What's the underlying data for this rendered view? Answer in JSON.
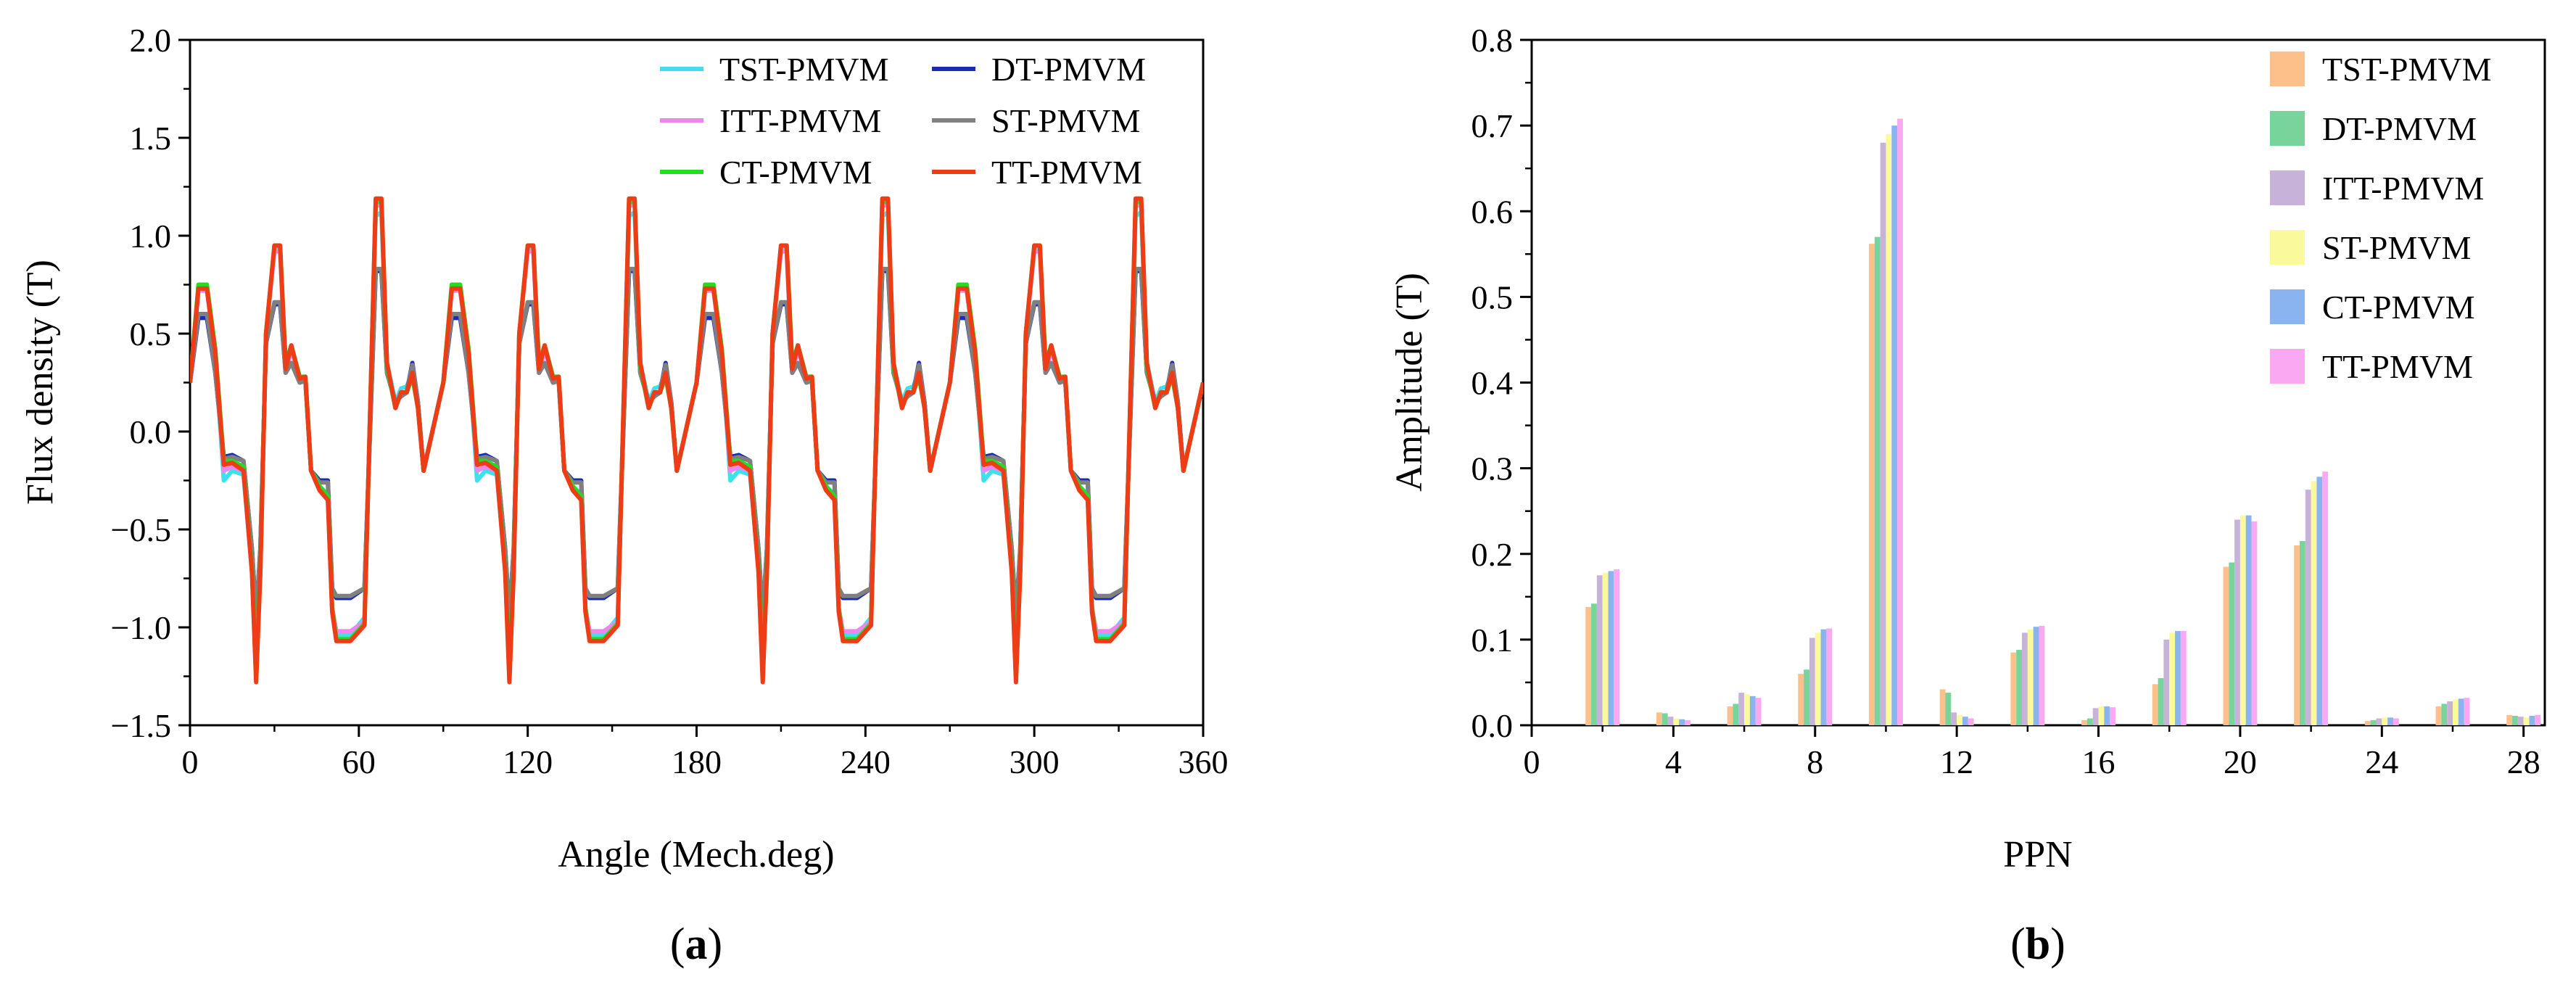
{
  "chart_data": [
    {
      "panel": "a",
      "caption_letter": "a",
      "type": "line",
      "xlabel": "Angle (Mech.deg)",
      "ylabel": "Flux density (T)",
      "xlim": [
        0,
        360
      ],
      "ylim": [
        -1.5,
        2.0
      ],
      "xticks": [
        0,
        60,
        120,
        180,
        240,
        300,
        360
      ],
      "yticks": [
        "2.0",
        "1.5",
        "1.0",
        "0.5",
        "0.0",
        "−0.5",
        "−1.0",
        "−1.5"
      ],
      "ytick_values": [
        2.0,
        1.5,
        1.0,
        0.5,
        0.0,
        -0.5,
        -1.0,
        -1.5
      ],
      "legend_position": "top-right",
      "period_deg": 90,
      "series": [
        {
          "name": "TST-PMVM",
          "color": "#3fe0ec",
          "x": [
            0,
            3,
            6,
            9,
            12,
            15,
            19,
            22,
            23.5,
            25,
            27,
            30,
            32,
            34,
            36,
            39,
            41,
            43,
            46,
            49,
            50.5,
            52,
            54,
            57,
            62,
            66,
            68,
            70,
            73,
            75,
            77,
            79,
            81,
            83,
            90
          ],
          "y": [
            0.25,
            0.72,
            0.72,
            0.4,
            -0.25,
            -0.2,
            -0.22,
            -0.7,
            -1.2,
            -0.7,
            0.5,
            0.93,
            0.93,
            0.32,
            0.43,
            0.27,
            0.28,
            -0.2,
            -0.28,
            -0.32,
            -0.9,
            -1.04,
            -1.04,
            -1.04,
            -0.95,
            1.1,
            1.12,
            0.35,
            0.15,
            0.22,
            0.23,
            0.3,
            0.15,
            -0.2,
            0.25
          ]
        },
        {
          "name": "DT-PMVM",
          "color": "#1a2bb5",
          "x": [
            0,
            3,
            6,
            9,
            12,
            15,
            19,
            22,
            23.5,
            25,
            27,
            30,
            32,
            34,
            36,
            39,
            41,
            43,
            46,
            49,
            50.5,
            52,
            54,
            57,
            62,
            66,
            68,
            70,
            73,
            75,
            77,
            79,
            81,
            83,
            90
          ],
          "y": [
            0.25,
            0.58,
            0.58,
            0.3,
            -0.13,
            -0.12,
            -0.15,
            -0.6,
            -0.95,
            -0.6,
            0.45,
            0.65,
            0.65,
            0.3,
            0.35,
            0.25,
            0.26,
            -0.2,
            -0.25,
            -0.25,
            -0.8,
            -0.85,
            -0.85,
            -0.85,
            -0.8,
            0.82,
            0.82,
            0.3,
            0.15,
            0.18,
            0.2,
            0.35,
            0.15,
            -0.2,
            0.25
          ]
        },
        {
          "name": "ITT-PMVM",
          "color": "#ef86ef",
          "x": [
            0,
            3,
            6,
            9,
            12,
            15,
            19,
            22,
            23.5,
            25,
            27,
            30,
            32,
            34,
            36,
            39,
            41,
            43,
            46,
            49,
            50.5,
            52,
            54,
            57,
            62,
            66,
            68,
            70,
            73,
            75,
            77,
            79,
            81,
            83,
            90
          ],
          "y": [
            0.25,
            0.72,
            0.72,
            0.4,
            -0.2,
            -0.18,
            -0.2,
            -0.7,
            -1.25,
            -0.7,
            0.5,
            0.92,
            0.92,
            0.3,
            0.42,
            0.27,
            0.28,
            -0.2,
            -0.28,
            -0.33,
            -0.9,
            -1.02,
            -1.02,
            -1.02,
            -0.97,
            1.15,
            1.16,
            0.33,
            0.12,
            0.2,
            0.2,
            0.28,
            0.12,
            -0.2,
            0.25
          ]
        },
        {
          "name": "ST-PMVM",
          "color": "#808080",
          "x": [
            0,
            3,
            6,
            9,
            12,
            15,
            19,
            22,
            23.5,
            25,
            27,
            30,
            32,
            34,
            36,
            39,
            41,
            43,
            46,
            49,
            50.5,
            52,
            54,
            57,
            62,
            66,
            68,
            70,
            73,
            75,
            77,
            79,
            81,
            83,
            90
          ],
          "y": [
            0.25,
            0.6,
            0.6,
            0.3,
            -0.14,
            -0.13,
            -0.15,
            -0.6,
            -0.96,
            -0.6,
            0.45,
            0.66,
            0.66,
            0.3,
            0.35,
            0.25,
            0.26,
            -0.2,
            -0.26,
            -0.26,
            -0.8,
            -0.84,
            -0.84,
            -0.84,
            -0.8,
            0.83,
            0.83,
            0.3,
            0.15,
            0.18,
            0.2,
            0.34,
            0.15,
            -0.2,
            0.25
          ]
        },
        {
          "name": "CT-PMVM",
          "color": "#22dd22",
          "x": [
            0,
            3,
            6,
            9,
            12,
            15,
            19,
            22,
            23.5,
            25,
            27,
            30,
            32,
            34,
            36,
            39,
            41,
            43,
            46,
            49,
            50.5,
            52,
            54,
            57,
            62,
            66,
            68,
            70,
            73,
            75,
            77,
            79,
            81,
            83,
            90
          ],
          "y": [
            0.25,
            0.75,
            0.75,
            0.42,
            -0.15,
            -0.15,
            -0.18,
            -0.7,
            -1.22,
            -0.7,
            0.5,
            0.95,
            0.95,
            0.35,
            0.44,
            0.28,
            0.28,
            -0.2,
            -0.28,
            -0.33,
            -0.9,
            -1.06,
            -1.06,
            -1.06,
            -0.98,
            1.17,
            1.18,
            0.33,
            0.12,
            0.2,
            0.2,
            0.28,
            0.12,
            -0.2,
            0.25
          ]
        },
        {
          "name": "TT-PMVM",
          "color": "#ee3c16",
          "x": [
            0,
            3,
            6,
            9,
            12,
            15,
            19,
            22,
            23.5,
            25,
            27,
            30,
            32,
            34,
            36,
            39,
            41,
            43,
            46,
            49,
            50.5,
            52,
            54,
            57,
            62,
            66,
            68,
            70,
            73,
            75,
            77,
            79,
            81,
            83,
            90
          ],
          "y": [
            0.25,
            0.73,
            0.73,
            0.4,
            -0.17,
            -0.16,
            -0.2,
            -0.72,
            -1.28,
            -0.72,
            0.5,
            0.95,
            0.95,
            0.32,
            0.44,
            0.27,
            0.28,
            -0.2,
            -0.3,
            -0.35,
            -0.92,
            -1.07,
            -1.07,
            -1.07,
            -0.99,
            1.19,
            1.19,
            0.35,
            0.12,
            0.2,
            0.2,
            0.3,
            0.12,
            -0.2,
            0.25
          ]
        }
      ]
    },
    {
      "panel": "b",
      "caption_letter": "b",
      "type": "bar",
      "xlabel": "PPN",
      "ylabel": "Amplitude (T)",
      "xlim": [
        0,
        28.6
      ],
      "ylim": [
        0,
        0.8
      ],
      "xticks": [
        0,
        4,
        8,
        12,
        16,
        20,
        24,
        28
      ],
      "yticks": [
        "0.8",
        "0.7",
        "0.6",
        "0.5",
        "0.4",
        "0.3",
        "0.2",
        "0.1",
        "0.0"
      ],
      "ytick_values": [
        0.8,
        0.7,
        0.6,
        0.5,
        0.4,
        0.3,
        0.2,
        0.1,
        0.0
      ],
      "legend_position": "top-right",
      "categories": [
        2,
        4,
        6,
        8,
        10,
        12,
        14,
        16,
        18,
        20,
        22,
        24,
        26,
        28
      ],
      "series": [
        {
          "name": "TST-PMVM",
          "color": "#fdc08a",
          "values": [
            0.138,
            0.015,
            0.022,
            0.06,
            0.562,
            0.042,
            0.085,
            0.006,
            0.048,
            0.185,
            0.21,
            0.005,
            0.022,
            0.012
          ]
        },
        {
          "name": "DT-PMVM",
          "color": "#79d49b",
          "values": [
            0.142,
            0.014,
            0.025,
            0.065,
            0.57,
            0.038,
            0.088,
            0.008,
            0.055,
            0.19,
            0.215,
            0.006,
            0.025,
            0.011
          ]
        },
        {
          "name": "ITT-PMVM",
          "color": "#c7b2da",
          "values": [
            0.175,
            0.01,
            0.038,
            0.102,
            0.68,
            0.015,
            0.108,
            0.02,
            0.1,
            0.24,
            0.275,
            0.008,
            0.028,
            0.01
          ]
        },
        {
          "name": "ST-PMVM",
          "color": "#fafa9c",
          "values": [
            0.178,
            0.008,
            0.036,
            0.108,
            0.69,
            0.012,
            0.112,
            0.022,
            0.108,
            0.245,
            0.285,
            0.009,
            0.03,
            0.009
          ]
        },
        {
          "name": "CT-PMVM",
          "color": "#8ab4f0",
          "values": [
            0.18,
            0.007,
            0.034,
            0.112,
            0.7,
            0.01,
            0.115,
            0.022,
            0.11,
            0.245,
            0.29,
            0.009,
            0.031,
            0.011
          ]
        },
        {
          "name": "TT-PMVM",
          "color": "#fba8f3",
          "values": [
            0.182,
            0.006,
            0.032,
            0.113,
            0.708,
            0.008,
            0.116,
            0.021,
            0.11,
            0.238,
            0.296,
            0.008,
            0.032,
            0.012
          ]
        }
      ]
    }
  ]
}
